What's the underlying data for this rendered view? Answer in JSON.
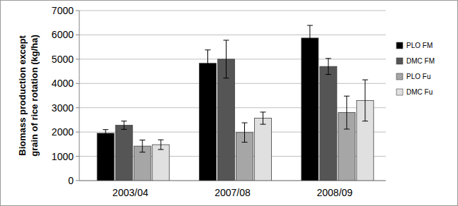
{
  "chart_data": {
    "type": "bar",
    "y_label": [
      "Biomass production except",
      "grain of rice rotation (kg/ha)"
    ],
    "categories": [
      "2003/04",
      "2007/08",
      "2008/09"
    ],
    "series": [
      {
        "name": "PLO FM",
        "color": "#000000",
        "values": [
          1950,
          4830,
          5870
        ],
        "errors": [
          150,
          550,
          520
        ]
      },
      {
        "name": "DMC FM",
        "color": "#555555",
        "values": [
          2280,
          5000,
          4700
        ],
        "errors": [
          170,
          780,
          330
        ]
      },
      {
        "name": "PLO Fu",
        "color": "#a6a6a6",
        "values": [
          1420,
          1980,
          2800
        ],
        "errors": [
          250,
          400,
          680
        ]
      },
      {
        "name": "DMC Fu",
        "color": "#e0e0e0",
        "values": [
          1480,
          2570,
          3300
        ],
        "errors": [
          200,
          250,
          850
        ]
      }
    ],
    "ylim": [
      0,
      7000
    ],
    "yticks": [
      0,
      1000,
      2000,
      3000,
      4000,
      5000,
      6000,
      7000
    ],
    "grid": true,
    "legend": "right"
  }
}
